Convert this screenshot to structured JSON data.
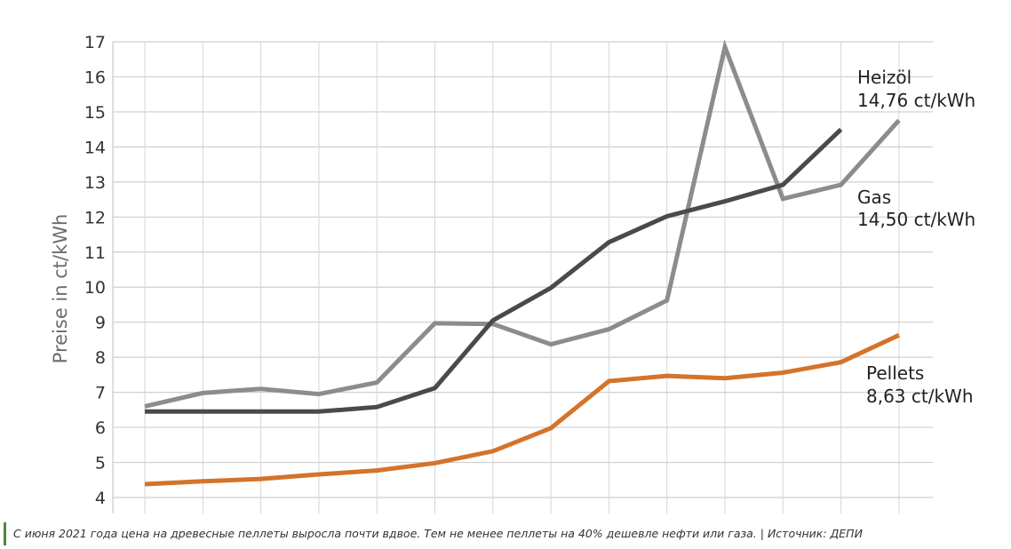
{
  "chart_data": {
    "type": "line",
    "ylabel": "Preise in ct/kWh",
    "ylim": [
      4,
      17
    ],
    "yticks": [
      4,
      5,
      6,
      7,
      8,
      9,
      10,
      11,
      12,
      13,
      14,
      15,
      16,
      17
    ],
    "grid": true,
    "x": [
      0,
      1,
      2,
      3,
      4,
      5,
      6,
      7,
      8,
      9,
      10,
      11,
      12,
      13
    ],
    "series": [
      {
        "name": "Heizöl",
        "color": "#8c8c8c",
        "values": [
          6.6,
          6.98,
          7.1,
          6.95,
          7.28,
          8.97,
          8.95,
          8.37,
          8.8,
          9.62,
          16.85,
          12.52,
          12.92,
          14.76
        ]
      },
      {
        "name": "Gas",
        "color": "#4a4a4a",
        "values": [
          6.45,
          6.45,
          6.45,
          6.45,
          6.58,
          7.12,
          9.05,
          9.98,
          11.28,
          12.02,
          12.45,
          12.92,
          14.5,
          null
        ]
      },
      {
        "name": "Pellets",
        "color": "#d4732a",
        "values": [
          4.38,
          4.46,
          4.53,
          4.66,
          4.77,
          4.98,
          5.32,
          5.98,
          7.32,
          7.47,
          7.4,
          7.56,
          7.86,
          8.63
        ]
      }
    ],
    "annotations": [
      {
        "series": "Heizöl",
        "line1": "Heizöl",
        "line2": "14,76 ct/kWh"
      },
      {
        "series": "Gas",
        "line1": "Gas",
        "line2": "14,50 ct/kWh"
      },
      {
        "series": "Pellets",
        "line1": "Pellets",
        "line2": "8,63 ct/kWh"
      }
    ]
  },
  "caption": "С июня 2021 года цена на древесные пеллеты выросла почти вдвое. Тем не менее пеллеты на 40% дешевле нефти или газа. | Источник: ДЕПИ"
}
